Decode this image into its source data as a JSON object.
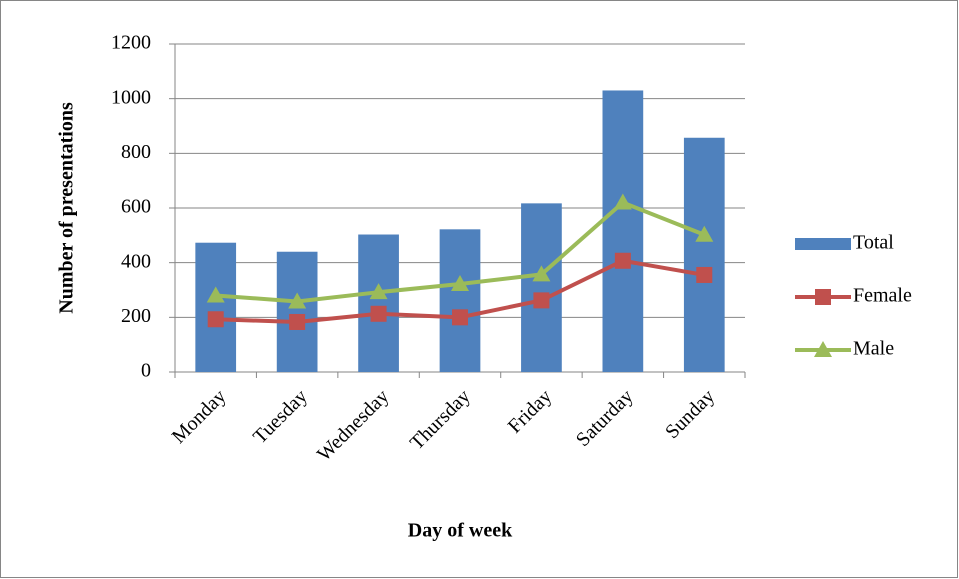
{
  "chart_data": {
    "type": "combo",
    "x_label": "Day of week",
    "y_label": "Number of presentations",
    "categories": [
      "Monday",
      "Tuesday",
      "Wednesday",
      "Thursday",
      "Friday",
      "Saturday",
      "Sunday"
    ],
    "series": [
      {
        "name": "Total",
        "type": "bar",
        "color": "#4f81bd",
        "values": [
          473,
          440,
          503,
          522,
          617,
          1030,
          857
        ]
      },
      {
        "name": "Female",
        "type": "line",
        "marker": "square",
        "color": "#c0504d",
        "values": [
          193,
          183,
          213,
          200,
          262,
          407,
          355
        ]
      },
      {
        "name": "Male",
        "type": "line",
        "marker": "triangle",
        "color": "#9bbb59",
        "values": [
          280,
          258,
          292,
          322,
          357,
          620,
          502
        ]
      }
    ],
    "ylim": [
      0,
      1200
    ],
    "yticks": [
      0,
      200,
      400,
      600,
      800,
      1000,
      1200
    ],
    "grid": true,
    "legend": "right"
  }
}
